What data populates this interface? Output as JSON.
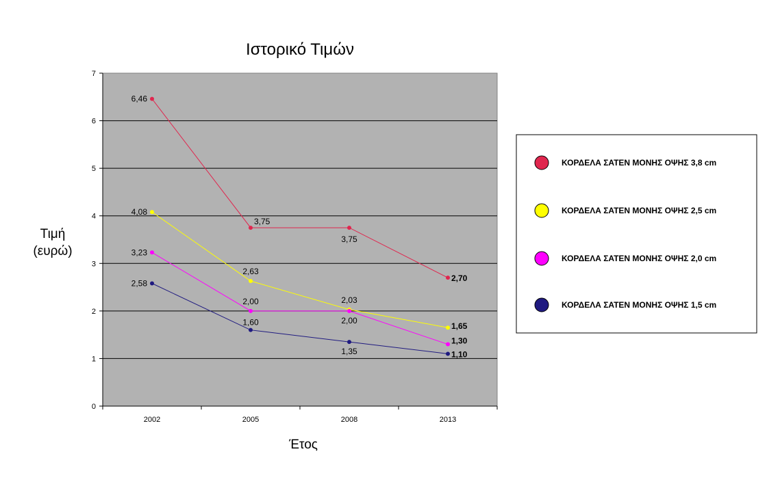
{
  "chart_data": {
    "type": "line",
    "title": "Ιστορικό Τιμών",
    "xlabel": "Έτος",
    "ylabel": [
      "Τιμή",
      "(ευρώ)"
    ],
    "categories": [
      "2002",
      "2005",
      "2008",
      "2013"
    ],
    "ylim": [
      0,
      7
    ],
    "yticks": [
      "0",
      "1",
      "2",
      "3",
      "4",
      "5",
      "6",
      "7"
    ],
    "grid": true,
    "plot_background": "#b2b2b2",
    "legend_position": "right",
    "series": [
      {
        "name": "ΚΟΡΔΕΛΑ ΣΑΤΕΝ ΜΟΝΗΣ ΟΨΗΣ 3,8 cm",
        "color": "#e0264e",
        "values": [
          6.46,
          3.75,
          3.75,
          2.7
        ],
        "labels": [
          "6,46",
          "3,75",
          "3,75",
          "2,70"
        ]
      },
      {
        "name": "ΚΟΡΔΕΛΑ ΣΑΤΕΝ ΜΟΝΗΣ ΟΨΗΣ 2,5 cm",
        "color": "#ffff00",
        "values": [
          4.08,
          2.63,
          2.03,
          1.65
        ],
        "labels": [
          "4,08",
          "2,63",
          "2,03",
          "1,65"
        ]
      },
      {
        "name": "ΚΟΡΔΕΛΑ ΣΑΤΕΝ ΜΟΝΗΣ ΟΨΗΣ 2,0 cm",
        "color": "#ff00ff",
        "values": [
          3.23,
          2.0,
          2.0,
          1.3
        ],
        "labels": [
          "3,23",
          "2,00",
          "2,00",
          "1,30"
        ]
      },
      {
        "name": "ΚΟΡΔΕΛΑ ΣΑΤΕΝ ΜΟΝΗΣ ΟΨΗΣ 1,5 cm",
        "color": "#1f1a80",
        "values": [
          2.58,
          1.6,
          1.35,
          1.1
        ],
        "labels": [
          "2,58",
          "1,60",
          "1,35",
          "1,10"
        ]
      }
    ]
  }
}
